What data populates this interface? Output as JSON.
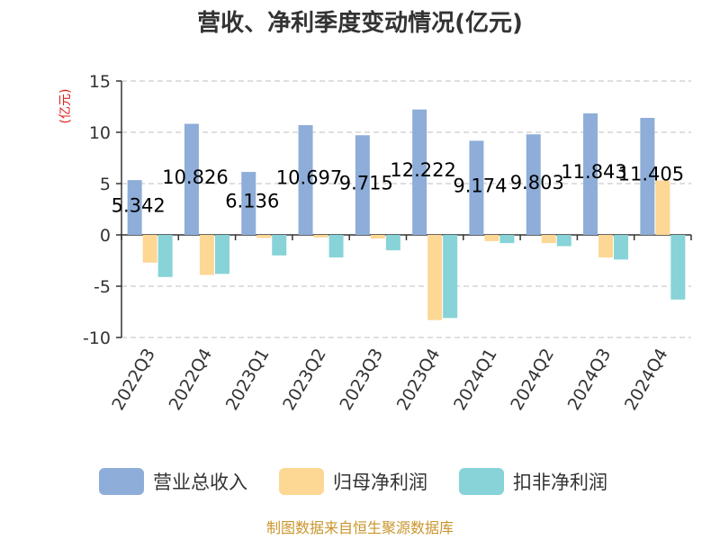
{
  "chart_data": {
    "type": "bar",
    "title": "营收、净利季度变动情况(亿元)",
    "ylabel": "(亿元)",
    "ylim": [
      -10,
      15
    ],
    "yticks": [
      15,
      10,
      5,
      0,
      -5,
      -10
    ],
    "grid": true,
    "legend_position": "bottom",
    "categories": [
      "2022Q3",
      "2022Q4",
      "2023Q1",
      "2023Q2",
      "2023Q3",
      "2023Q4",
      "2024Q1",
      "2024Q2",
      "2024Q3",
      "2024Q4"
    ],
    "series": [
      {
        "name": "营业总收入",
        "color": "#8eadd9",
        "values": [
          5.342,
          10.826,
          6.136,
          10.697,
          9.715,
          12.222,
          9.174,
          9.803,
          11.843,
          11.405
        ],
        "labels": [
          "5.342",
          "10.826",
          "6.136",
          "10.697",
          "9.715",
          "12.222",
          "9.174",
          "9.803",
          "11.843",
          "11.405"
        ]
      },
      {
        "name": "归母净利润",
        "color": "#fdd794",
        "values": [
          -2.7,
          -3.9,
          -0.3,
          -0.25,
          -0.35,
          -8.3,
          -0.6,
          -0.8,
          -2.2,
          5.3
        ]
      },
      {
        "name": "扣非净利润",
        "color": "#87d3d7",
        "values": [
          -4.1,
          -3.8,
          -2.0,
          -2.2,
          -1.5,
          -8.1,
          -0.8,
          -1.1,
          -2.4,
          -6.3
        ]
      }
    ]
  },
  "colors": {
    "axis": "#333333",
    "grid": "#cccccc",
    "unit_label": "#e0201a",
    "source_text": "#c9962c"
  },
  "source": "制图数据来自恒生聚源数据库"
}
